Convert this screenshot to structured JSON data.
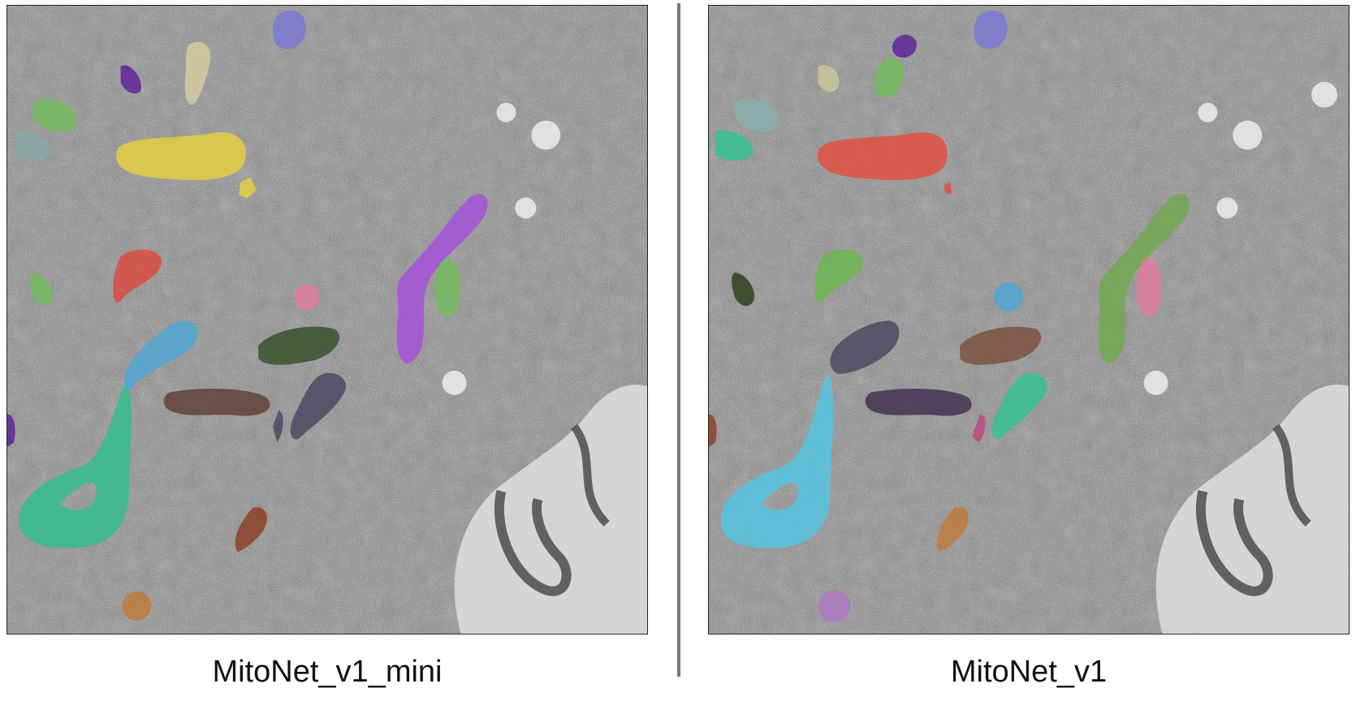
{
  "panels": [
    {
      "title": "MitoNet_v1_mini",
      "colors": [
        "#e9d23a",
        "#a64be0",
        "#2bc08a",
        "#4aa7d6",
        "#e0453a",
        "#5c3a2e",
        "#6fbe5a",
        "#e47aa0",
        "#2f4a22",
        "#45405e",
        "#8a3a1e",
        "#c07a36",
        "#5a1a9a",
        "#7a76d8",
        "#6aa35a",
        "#88a8a8",
        "#d8cfa0"
      ]
    },
    {
      "title": "MitoNet_v1",
      "colors": [
        "#e8483a",
        "#6fa84a",
        "#4ec8e6",
        "#2fc48e",
        "#e47aa0",
        "#7a4a3a",
        "#3a2a4a",
        "#45405e",
        "#4aa7d6",
        "#c07a36",
        "#b076c8",
        "#223a12",
        "#6ab84a",
        "#5a1a9a",
        "#7a76d8",
        "#88b0b0",
        "#d0c89a",
        "#5a9a3a",
        "#c04080"
      ]
    }
  ],
  "divider_color": "#7a7a7a"
}
